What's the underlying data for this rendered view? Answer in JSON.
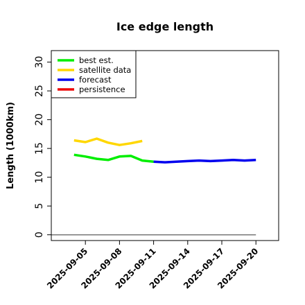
{
  "chart_data": {
    "type": "line",
    "title": "Ice edge length",
    "xlabel": "",
    "ylabel": "Length (1000km)",
    "ylim": [
      -1,
      32
    ],
    "xlim": [
      "2025-09-02",
      "2025-09-22"
    ],
    "yticks": [
      0,
      5,
      10,
      15,
      20,
      25,
      30
    ],
    "xticks": [
      "2025-09-05",
      "2025-09-08",
      "2025-09-11",
      "2025-09-14",
      "2025-09-17",
      "2025-09-20"
    ],
    "highlight_tick": "2025-09-11",
    "highlight_color": "#228B22",
    "grid": false,
    "legend_position": "top-left",
    "series": [
      {
        "name": "best est.",
        "color": "#00ee00",
        "x": [
          "2025-09-04",
          "2025-09-05",
          "2025-09-06",
          "2025-09-07",
          "2025-09-08",
          "2025-09-09",
          "2025-09-10",
          "2025-09-11"
        ],
        "y": [
          13.9,
          13.6,
          13.2,
          13.0,
          13.6,
          13.7,
          12.9,
          12.7
        ]
      },
      {
        "name": "satellite data",
        "color": "#ffd700",
        "x": [
          "2025-09-04",
          "2025-09-05",
          "2025-09-06",
          "2025-09-07",
          "2025-09-08",
          "2025-09-09",
          "2025-09-10"
        ],
        "y": [
          16.4,
          16.1,
          16.7,
          16.0,
          15.6,
          15.9,
          16.3
        ]
      },
      {
        "name": "forecast",
        "color": "#0000ee",
        "x": [
          "2025-09-11",
          "2025-09-12",
          "2025-09-13",
          "2025-09-14",
          "2025-09-15",
          "2025-09-16",
          "2025-09-17",
          "2025-09-18",
          "2025-09-19",
          "2025-09-20"
        ],
        "y": [
          12.7,
          12.6,
          12.7,
          12.8,
          12.9,
          12.8,
          12.9,
          13.0,
          12.9,
          13.0
        ]
      },
      {
        "name": "persistence",
        "color": "#ee0000",
        "x": [],
        "y": []
      }
    ],
    "baseline": {
      "x": [
        "2025-09-02",
        "2025-09-20"
      ],
      "y": 0,
      "color": "#777777"
    }
  }
}
